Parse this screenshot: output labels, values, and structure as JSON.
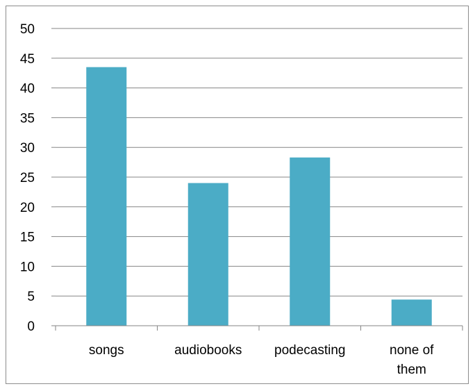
{
  "chart_data": {
    "type": "bar",
    "categories": [
      [
        "songs"
      ],
      [
        "audiobooks"
      ],
      [
        "podecasting"
      ],
      [
        "none of",
        "them"
      ]
    ],
    "values": [
      43.5,
      24,
      28.3,
      4.4
    ],
    "ylim": [
      0,
      50
    ],
    "y_ticks": [
      "0",
      "5",
      "10",
      "15",
      "20",
      "25",
      "30",
      "35",
      "40",
      "45",
      "50"
    ],
    "grid": true,
    "legend": "none",
    "bar_color": "#4bacc6",
    "grid_color": "#858585"
  }
}
